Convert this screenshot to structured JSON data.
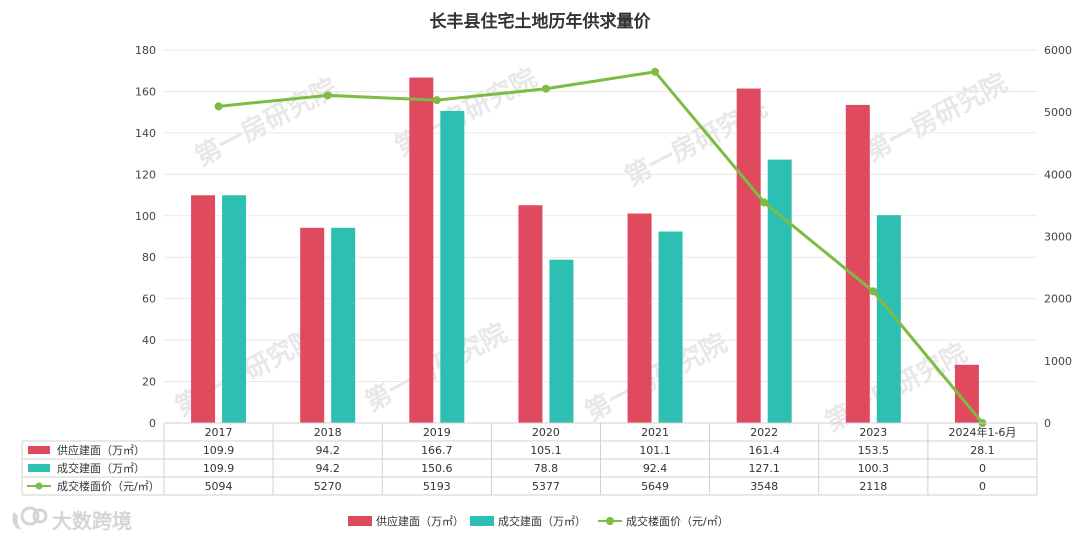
{
  "chart_data": {
    "type": "bar",
    "title": "长丰县住宅土地历年供求量价",
    "categories": [
      "2017",
      "2018",
      "2019",
      "2020",
      "2021",
      "2022",
      "2023",
      "2024年1-6月"
    ],
    "series": [
      {
        "name": "供应建面（万㎡）",
        "type": "bar",
        "axis": "left",
        "color": "#e04a5f",
        "values": [
          109.9,
          94.2,
          166.7,
          105.1,
          101.1,
          161.4,
          153.5,
          28.1
        ]
      },
      {
        "name": "成交建面（万㎡）",
        "type": "bar",
        "axis": "left",
        "color": "#2ebfb3",
        "values": [
          109.9,
          94.2,
          150.6,
          78.8,
          92.4,
          127.1,
          100.3,
          0
        ]
      },
      {
        "name": "成交楼面价（元/㎡）",
        "type": "line",
        "axis": "right",
        "color": "#7dbb42",
        "values": [
          5094,
          5270,
          5193,
          5377,
          5649,
          3548,
          2118,
          0
        ]
      }
    ],
    "y_left": {
      "min": 0,
      "max": 180,
      "ticks": [
        "0",
        "20",
        "40",
        "60",
        "80",
        "100",
        "120",
        "140",
        "160",
        "180"
      ]
    },
    "y_right": {
      "min": 0,
      "max": 6000,
      "ticks": [
        "0",
        "1000",
        "2000",
        "3000",
        "4000",
        "5000",
        "6000"
      ]
    },
    "grid": true,
    "legend_position": "bottom",
    "data_table": true
  },
  "watermark": "第一房研究院",
  "logo_text": "大数跨境"
}
